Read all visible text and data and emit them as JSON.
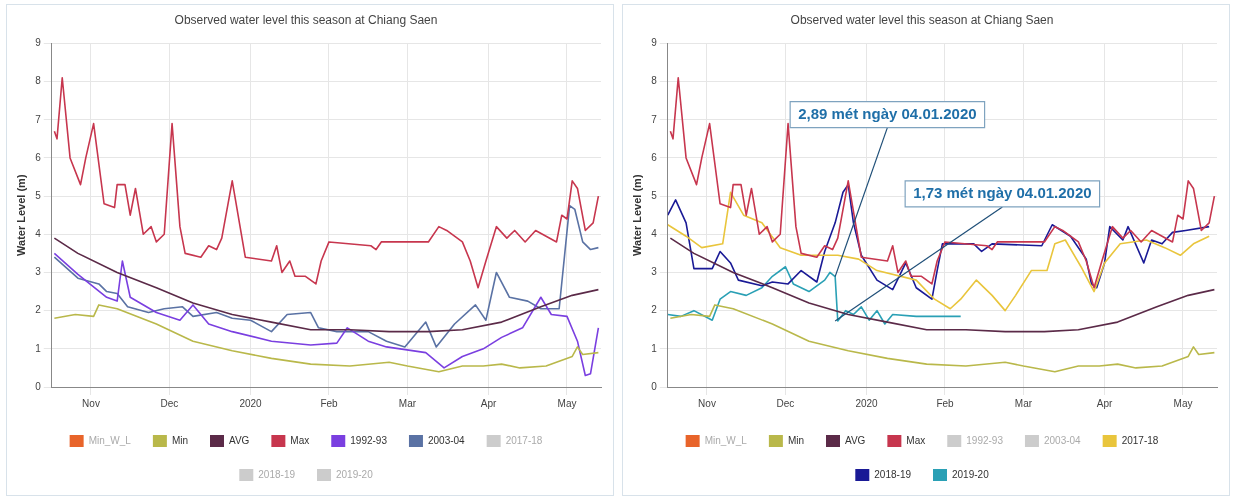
{
  "chart_data": [
    {
      "type": "line",
      "title": "Observed water level this season at Chiang Saen",
      "ylabel": "Water Level (m)",
      "xlim": [
        "2019-11-01",
        "2020-05-29"
      ],
      "ylim": [
        0,
        9
      ],
      "yticks": [
        0,
        1,
        2,
        3,
        4,
        5,
        6,
        7,
        8,
        9
      ],
      "xticks": [
        {
          "value": "2019-11-16",
          "label": "Nov"
        },
        {
          "value": "2019-12-16",
          "label": "Dec"
        },
        {
          "value": "2020-01-16",
          "label": "2020"
        },
        {
          "value": "2020-02-15",
          "label": "Feb"
        },
        {
          "value": "2020-03-16",
          "label": "Mar"
        },
        {
          "value": "2020-04-16",
          "label": "Apr"
        },
        {
          "value": "2020-05-16",
          "label": "May"
        }
      ],
      "grid": true,
      "legend": "bottom",
      "marker": "none",
      "series": [
        {
          "name": "Min_W_L",
          "color": "#e8642a"
        },
        {
          "name": "Min",
          "color": "#b9b84a",
          "x": [
            "2019-11-02",
            "2019-11-10",
            "2019-11-17",
            "2019-11-19",
            "2019-11-26",
            "2019-12-11",
            "2019-12-25",
            "2020-01-09",
            "2020-01-24",
            "2020-02-08",
            "2020-02-23",
            "2020-03-09",
            "2020-03-16",
            "2020-03-28",
            "2020-04-06",
            "2020-04-14",
            "2020-04-21",
            "2020-04-28",
            "2020-05-08",
            "2020-05-18",
            "2020-05-20",
            "2020-05-22",
            "2020-05-28"
          ],
          "values": [
            1.8,
            1.9,
            1.85,
            2.15,
            2.05,
            1.65,
            1.2,
            0.95,
            0.75,
            0.6,
            0.55,
            0.65,
            0.55,
            0.4,
            0.55,
            0.55,
            0.6,
            0.5,
            0.55,
            0.8,
            1.05,
            0.85,
            0.9
          ]
        },
        {
          "name": "AVG",
          "color": "#5b2a48",
          "x": [
            "2019-11-02",
            "2019-11-11",
            "2019-11-26",
            "2019-12-11",
            "2019-12-25",
            "2020-01-09",
            "2020-01-24",
            "2020-02-08",
            "2020-02-23",
            "2020-03-09",
            "2020-03-24",
            "2020-04-06",
            "2020-04-21",
            "2020-05-06",
            "2020-05-18",
            "2020-05-28"
          ],
          "values": [
            3.9,
            3.5,
            3.0,
            2.6,
            2.2,
            1.9,
            1.7,
            1.5,
            1.5,
            1.45,
            1.45,
            1.5,
            1.7,
            2.1,
            2.4,
            2.55
          ]
        },
        {
          "name": "Max",
          "color": "#c7364e",
          "x": [
            "2019-11-02",
            "2019-11-03",
            "2019-11-05",
            "2019-11-08",
            "2019-11-12",
            "2019-11-14",
            "2019-11-17",
            "2019-11-21",
            "2019-11-25",
            "2019-11-26",
            "2019-11-29",
            "2019-12-01",
            "2019-12-03",
            "2019-12-06",
            "2019-12-09",
            "2019-12-11",
            "2019-12-14",
            "2019-12-17",
            "2019-12-20",
            "2019-12-22",
            "2019-12-28",
            "2019-12-31",
            "2020-01-03",
            "2020-01-05",
            "2020-01-09",
            "2020-01-14",
            "2020-01-24",
            "2020-01-26",
            "2020-01-28",
            "2020-01-31",
            "2020-02-02",
            "2020-02-06",
            "2020-02-10",
            "2020-02-12",
            "2020-02-15",
            "2020-03-02",
            "2020-03-04",
            "2020-03-06",
            "2020-03-24",
            "2020-03-28",
            "2020-03-31",
            "2020-04-06",
            "2020-04-09",
            "2020-04-12",
            "2020-04-15",
            "2020-04-19",
            "2020-04-23",
            "2020-04-26",
            "2020-04-30",
            "2020-05-04",
            "2020-05-12",
            "2020-05-14",
            "2020-05-16",
            "2020-05-18",
            "2020-05-20",
            "2020-05-23",
            "2020-05-26",
            "2020-05-28"
          ],
          "values": [
            6.7,
            6.5,
            8.1,
            6.0,
            5.3,
            6.0,
            6.9,
            4.8,
            4.7,
            5.3,
            5.3,
            4.5,
            5.2,
            4.0,
            4.2,
            3.8,
            4.0,
            6.9,
            4.2,
            3.5,
            3.4,
            3.7,
            3.6,
            3.9,
            5.4,
            3.4,
            3.3,
            3.7,
            3.0,
            3.3,
            2.9,
            2.9,
            2.7,
            3.3,
            3.8,
            3.7,
            3.6,
            3.8,
            3.8,
            4.2,
            4.1,
            3.8,
            3.3,
            2.6,
            3.3,
            4.2,
            3.9,
            4.1,
            3.8,
            4.1,
            3.8,
            4.5,
            4.4,
            5.4,
            5.2,
            4.1,
            4.3,
            5.0
          ]
        },
        {
          "name": "1992-93",
          "color": "#7a3fe0",
          "x": [
            "2019-11-02",
            "2019-11-11",
            "2019-11-22",
            "2019-11-26",
            "2019-11-28",
            "2019-12-01",
            "2019-12-11",
            "2019-12-20",
            "2019-12-25",
            "2019-12-31",
            "2020-01-09",
            "2020-01-24",
            "2020-02-08",
            "2020-02-18",
            "2020-02-22",
            "2020-03-01",
            "2020-03-08",
            "2020-03-23",
            "2020-03-30",
            "2020-04-06",
            "2020-04-14",
            "2020-04-21",
            "2020-04-29",
            "2020-05-06",
            "2020-05-10",
            "2020-05-16",
            "2020-05-20",
            "2020-05-23",
            "2020-05-25",
            "2020-05-28"
          ],
          "values": [
            3.5,
            2.95,
            2.35,
            2.25,
            3.3,
            2.35,
            1.95,
            1.75,
            2.15,
            1.65,
            1.45,
            1.2,
            1.1,
            1.15,
            1.55,
            1.2,
            1.05,
            0.9,
            0.5,
            0.8,
            1.0,
            1.3,
            1.55,
            2.35,
            1.9,
            1.85,
            1.2,
            0.3,
            0.35,
            1.55
          ]
        },
        {
          "name": "2003-04",
          "color": "#5a72a4",
          "x": [
            "2019-11-02",
            "2019-11-11",
            "2019-11-19",
            "2019-11-22",
            "2019-11-26",
            "2019-11-30",
            "2019-12-08",
            "2019-12-14",
            "2019-12-21",
            "2019-12-25",
            "2020-01-03",
            "2020-01-09",
            "2020-01-16",
            "2020-01-24",
            "2020-01-30",
            "2020-02-08",
            "2020-02-11",
            "2020-02-18",
            "2020-03-01",
            "2020-03-08",
            "2020-03-15",
            "2020-03-23",
            "2020-03-27",
            "2020-04-03",
            "2020-04-11",
            "2020-04-15",
            "2020-04-19",
            "2020-04-24",
            "2020-05-01",
            "2020-05-06",
            "2020-05-13",
            "2020-05-17",
            "2020-05-19",
            "2020-05-22",
            "2020-05-25",
            "2020-05-28"
          ],
          "values": [
            3.4,
            2.85,
            2.7,
            2.5,
            2.45,
            2.1,
            1.95,
            2.05,
            2.1,
            1.85,
            1.95,
            1.8,
            1.75,
            1.45,
            1.9,
            1.95,
            1.55,
            1.45,
            1.45,
            1.2,
            1.05,
            1.7,
            1.05,
            1.65,
            2.15,
            1.75,
            3.0,
            2.35,
            2.25,
            2.05,
            2.05,
            4.75,
            4.65,
            3.8,
            3.6,
            3.65
          ]
        },
        {
          "name": "2017-18",
          "color": "#cccccc"
        },
        {
          "name": "2018-19",
          "color": "#cccccc"
        },
        {
          "name": "2019-20",
          "color": "#cccccc"
        }
      ]
    },
    {
      "type": "line",
      "title": "Observed water level this season at Chiang Saen",
      "ylabel": "Water Level (m)",
      "xlim": [
        "2019-11-01",
        "2020-05-29"
      ],
      "ylim": [
        0,
        9
      ],
      "yticks": [
        0,
        1,
        2,
        3,
        4,
        5,
        6,
        7,
        8,
        9
      ],
      "xticks": [
        {
          "value": "2019-11-16",
          "label": "Nov"
        },
        {
          "value": "2019-12-16",
          "label": "Dec"
        },
        {
          "value": "2020-01-16",
          "label": "2020"
        },
        {
          "value": "2020-02-15",
          "label": "Feb"
        },
        {
          "value": "2020-03-16",
          "label": "Mar"
        },
        {
          "value": "2020-04-16",
          "label": "Apr"
        },
        {
          "value": "2020-05-16",
          "label": "May"
        }
      ],
      "grid": true,
      "legend": "bottom",
      "marker": "none",
      "annotations": [
        {
          "text": "2,89 mét ngày 04.01.2020",
          "x": "2020-01-04",
          "y": 2.89
        },
        {
          "text": "1,73 mét ngày 04.01.2020",
          "x": "2020-01-04",
          "y": 1.73
        }
      ],
      "series": [
        {
          "name": "Min_W_L",
          "color": "#e8642a"
        },
        {
          "name": "Min",
          "color": "#b9b84a",
          "x": [
            "2019-11-02",
            "2019-11-10",
            "2019-11-17",
            "2019-11-19",
            "2019-11-26",
            "2019-12-11",
            "2019-12-25",
            "2020-01-09",
            "2020-01-24",
            "2020-02-08",
            "2020-02-23",
            "2020-03-09",
            "2020-03-16",
            "2020-03-28",
            "2020-04-06",
            "2020-04-14",
            "2020-04-21",
            "2020-04-28",
            "2020-05-08",
            "2020-05-18",
            "2020-05-20",
            "2020-05-22",
            "2020-05-28"
          ],
          "values": [
            1.8,
            1.9,
            1.85,
            2.15,
            2.05,
            1.65,
            1.2,
            0.95,
            0.75,
            0.6,
            0.55,
            0.65,
            0.55,
            0.4,
            0.55,
            0.55,
            0.6,
            0.5,
            0.55,
            0.8,
            1.05,
            0.85,
            0.9
          ]
        },
        {
          "name": "AVG",
          "color": "#5b2a48",
          "x": [
            "2019-11-02",
            "2019-11-11",
            "2019-11-26",
            "2019-12-11",
            "2019-12-25",
            "2020-01-09",
            "2020-01-24",
            "2020-02-08",
            "2020-02-23",
            "2020-03-09",
            "2020-03-24",
            "2020-04-06",
            "2020-04-21",
            "2020-05-06",
            "2020-05-18",
            "2020-05-28"
          ],
          "values": [
            3.9,
            3.5,
            3.0,
            2.6,
            2.2,
            1.9,
            1.7,
            1.5,
            1.5,
            1.45,
            1.45,
            1.5,
            1.7,
            2.1,
            2.4,
            2.55
          ]
        },
        {
          "name": "Max",
          "color": "#c7364e",
          "x": [
            "2019-11-02",
            "2019-11-03",
            "2019-11-05",
            "2019-11-08",
            "2019-11-12",
            "2019-11-14",
            "2019-11-17",
            "2019-11-21",
            "2019-11-25",
            "2019-11-26",
            "2019-11-29",
            "2019-12-01",
            "2019-12-03",
            "2019-12-06",
            "2019-12-09",
            "2019-12-11",
            "2019-12-14",
            "2019-12-17",
            "2019-12-20",
            "2019-12-22",
            "2019-12-28",
            "2019-12-31",
            "2020-01-03",
            "2020-01-05",
            "2020-01-09",
            "2020-01-14",
            "2020-01-24",
            "2020-01-26",
            "2020-01-28",
            "2020-01-31",
            "2020-02-02",
            "2020-02-06",
            "2020-02-10",
            "2020-02-12",
            "2020-02-15",
            "2020-03-02",
            "2020-03-04",
            "2020-03-06",
            "2020-03-24",
            "2020-03-28",
            "2020-03-31",
            "2020-04-06",
            "2020-04-09",
            "2020-04-12",
            "2020-04-15",
            "2020-04-19",
            "2020-04-23",
            "2020-04-26",
            "2020-04-30",
            "2020-05-04",
            "2020-05-12",
            "2020-05-14",
            "2020-05-16",
            "2020-05-18",
            "2020-05-20",
            "2020-05-23",
            "2020-05-26",
            "2020-05-28"
          ],
          "values": [
            6.7,
            6.5,
            8.1,
            6.0,
            5.3,
            6.0,
            6.9,
            4.8,
            4.7,
            5.3,
            5.3,
            4.5,
            5.2,
            4.0,
            4.2,
            3.8,
            4.0,
            6.9,
            4.2,
            3.5,
            3.4,
            3.7,
            3.6,
            3.9,
            5.4,
            3.4,
            3.3,
            3.7,
            3.0,
            3.3,
            2.9,
            2.9,
            2.7,
            3.3,
            3.8,
            3.7,
            3.6,
            3.8,
            3.8,
            4.2,
            4.1,
            3.8,
            3.3,
            2.6,
            3.3,
            4.2,
            3.9,
            4.1,
            3.8,
            4.1,
            3.8,
            4.5,
            4.4,
            5.4,
            5.2,
            4.1,
            4.3,
            5.0
          ]
        },
        {
          "name": "1992-93",
          "color": "#cccccc"
        },
        {
          "name": "2003-04",
          "color": "#cccccc"
        },
        {
          "name": "2017-18",
          "color": "#e9c53c",
          "x": [
            "2019-11-01",
            "2019-11-08",
            "2019-11-14",
            "2019-11-22",
            "2019-11-25",
            "2019-11-30",
            "2019-12-07",
            "2019-12-14",
            "2019-12-22",
            "2020-01-05",
            "2020-01-13",
            "2020-01-20",
            "2020-02-04",
            "2020-02-11",
            "2020-02-17",
            "2020-02-21",
            "2020-02-27",
            "2020-03-04",
            "2020-03-09",
            "2020-03-13",
            "2020-03-19",
            "2020-03-25",
            "2020-03-28",
            "2020-04-01",
            "2020-04-07",
            "2020-04-12",
            "2020-04-16",
            "2020-04-22",
            "2020-05-02",
            "2020-05-09",
            "2020-05-15",
            "2020-05-20",
            "2020-05-26"
          ],
          "values": [
            4.25,
            3.95,
            3.65,
            3.75,
            5.1,
            4.5,
            4.3,
            3.65,
            3.45,
            3.45,
            3.35,
            3.05,
            2.8,
            2.3,
            2.05,
            2.3,
            2.8,
            2.4,
            2.0,
            2.4,
            3.05,
            3.05,
            3.75,
            3.85,
            3.15,
            2.5,
            3.25,
            3.75,
            3.85,
            3.65,
            3.45,
            3.75,
            3.95
          ]
        },
        {
          "name": "2018-19",
          "color": "#1a1a96",
          "x": [
            "2019-11-01",
            "2019-11-04",
            "2019-11-08",
            "2019-11-11",
            "2019-11-18",
            "2019-11-21",
            "2019-11-25",
            "2019-11-28",
            "2019-12-07",
            "2019-12-11",
            "2019-12-17",
            "2019-12-22",
            "2019-12-28",
            "2019-12-31",
            "2020-01-04",
            "2020-01-07",
            "2020-01-09",
            "2020-01-11",
            "2020-01-14",
            "2020-01-20",
            "2020-01-26",
            "2020-01-31",
            "2020-02-04",
            "2020-02-10",
            "2020-02-12",
            "2020-02-14",
            "2020-02-26",
            "2020-02-29",
            "2020-03-04",
            "2020-03-23",
            "2020-03-27",
            "2020-04-03",
            "2020-04-09",
            "2020-04-11",
            "2020-04-13",
            "2020-04-16",
            "2020-04-18",
            "2020-04-23",
            "2020-04-25",
            "2020-05-01",
            "2020-05-04",
            "2020-05-08",
            "2020-05-12",
            "2020-05-17",
            "2020-05-26"
          ],
          "values": [
            4.5,
            4.9,
            4.3,
            3.1,
            3.1,
            3.55,
            3.25,
            2.8,
            2.65,
            2.75,
            2.7,
            3.05,
            2.75,
            3.55,
            4.3,
            5.1,
            5.3,
            4.3,
            3.45,
            2.8,
            2.55,
            3.25,
            2.6,
            2.3,
            3.05,
            3.75,
            3.75,
            3.55,
            3.75,
            3.7,
            4.25,
            3.95,
            3.35,
            2.7,
            2.6,
            3.25,
            4.2,
            3.85,
            4.2,
            3.25,
            3.85,
            3.75,
            4.05,
            4.1,
            4.2
          ]
        },
        {
          "name": "2019-20",
          "color": "#2aa0b5",
          "x": [
            "2019-11-01",
            "2019-11-06",
            "2019-11-11",
            "2019-11-18",
            "2019-11-21",
            "2019-11-25",
            "2019-12-01",
            "2019-12-07",
            "2019-12-11",
            "2019-12-16",
            "2019-12-19",
            "2019-12-25",
            "2019-12-31",
            "2020-01-02",
            "2020-01-04",
            "2020-01-05",
            "2020-01-08",
            "2020-01-11",
            "2020-01-14",
            "2020-01-17",
            "2020-01-20",
            "2020-01-23",
            "2020-01-26",
            "2020-02-04",
            "2020-02-21"
          ],
          "values": [
            1.9,
            1.85,
            2.0,
            1.75,
            2.3,
            2.5,
            2.4,
            2.6,
            2.9,
            3.15,
            2.7,
            2.5,
            2.8,
            3.0,
            2.89,
            1.73,
            2.0,
            1.9,
            2.1,
            1.75,
            2.0,
            1.65,
            1.9,
            1.85,
            1.85
          ]
        }
      ]
    }
  ]
}
